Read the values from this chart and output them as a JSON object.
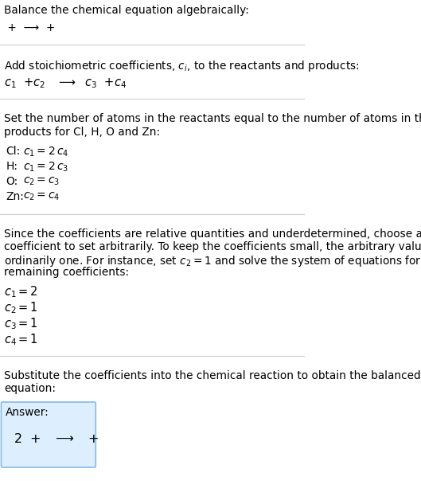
{
  "bg_color": "#ffffff",
  "text_color": "#000000",
  "line_color": "#cccccc",
  "answer_box_facecolor": "#ddeeff",
  "answer_box_edgecolor": "#88bbdd",
  "title": "Balance the chemical equation algebraically:",
  "line1": " +  ⟶  + ",
  "s2_header": "Add stoichiometric coefficients, $c_i$, to the reactants and products:",
  "s2_eq": "$c_1$  +$c_2$   ⟶  $c_3$  +$c_4$",
  "s3_header": "Set the number of atoms in the reactants equal to the number of atoms in the\nproducts for Cl, H, O and Zn:",
  "s3_atoms": [
    "Cl",
    "H",
    "O",
    "Zn"
  ],
  "s3_eqs": [
    "$c_1 = 2\\,c_4$",
    "$c_1 = 2\\,c_3$",
    "$c_2 = c_3$",
    "$c_2 = c_4$"
  ],
  "s4_header": "Since the coefficients are relative quantities and underdetermined, choose a\ncoefficient to set arbitrarily. To keep the coefficients small, the arbitrary value is\nordinarily one. For instance, set $c_2 = 1$ and solve the system of equations for the\nremaining coefficients:",
  "s4_lines": [
    "$c_1 = 2$",
    "$c_2 = 1$",
    "$c_3 = 1$",
    "$c_4 = 1$"
  ],
  "s5_header": "Substitute the coefficients into the chemical reaction to obtain the balanced\nequation:",
  "answer_label": "Answer:",
  "answer_eq": "2  +   ⟶   +"
}
